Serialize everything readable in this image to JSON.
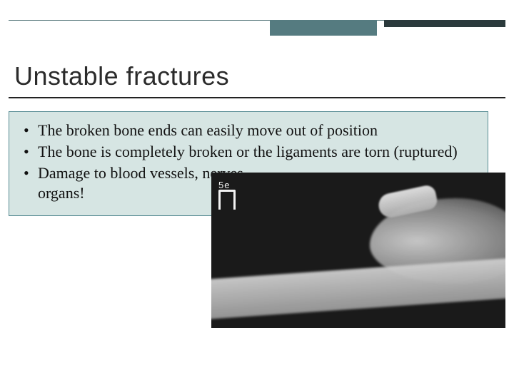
{
  "decor": {
    "rule_color": "#5a7a7e",
    "accent1_color": "#557b80",
    "accent2_color": "#2b3a3c",
    "underline_color": "#222222"
  },
  "title": {
    "text": "Unstable fractures",
    "font_family": "Trebuchet MS",
    "font_size_pt": 28,
    "color": "#2b2b2b"
  },
  "body": {
    "background_color": "#d6e5e3",
    "border_color": "#5a8e95",
    "font_family": "Georgia",
    "font_size_pt": 17,
    "text_color": "#111111",
    "bullets": [
      "The broken bone ends can easily move out of position",
      "The bone is completely broken or the ligaments are torn (ruptured)",
      "Damage to blood vessels, nerves, organs!"
    ]
  },
  "xray": {
    "type": "image-placeholder",
    "description": "Grayscale X-ray of a fractured bone (distal radius / ankle region) with a displaced fragment",
    "marker_text": "5e",
    "background_color": "#1a1a1a",
    "bone_color": "#cfcfcf"
  }
}
